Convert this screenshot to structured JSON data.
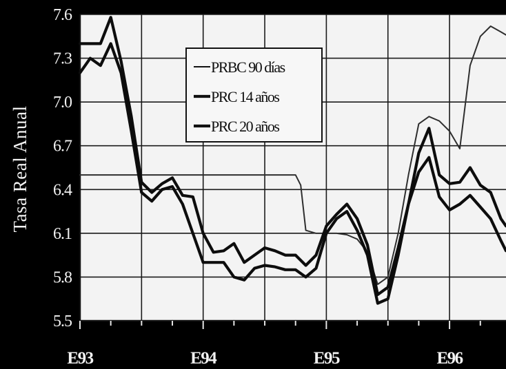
{
  "chart_data": {
    "type": "line",
    "title": "",
    "xlabel": "",
    "ylabel": "Tasa Real Anual",
    "ylim": [
      5.5,
      7.6
    ],
    "yticks": [
      "7.6",
      "7.3",
      "7.0",
      "6.7",
      "6.4",
      "6.1",
      "5.8",
      "5.5"
    ],
    "x_tick_labels": [
      "E93",
      "E94",
      "E95",
      "E96"
    ],
    "x_tick_positions": [
      0,
      12,
      24,
      36
    ],
    "xlim": [
      0,
      41.5
    ],
    "grid": true,
    "legend_position": "top-center",
    "series": [
      {
        "name": "PRBC 90 días",
        "style": "thin",
        "x": [
          0,
          1,
          2,
          3,
          4,
          5,
          6,
          7,
          8,
          9,
          10,
          11,
          12,
          13,
          14,
          15,
          16,
          17,
          18,
          19,
          20,
          21,
          21.5,
          22,
          23,
          24,
          25,
          26,
          27,
          28,
          29,
          30,
          31,
          32,
          33,
          34,
          35,
          36,
          37,
          38,
          39,
          40,
          41,
          41.5
        ],
        "values": [
          6.5,
          6.5,
          6.5,
          6.5,
          6.5,
          6.5,
          6.5,
          6.5,
          6.5,
          6.5,
          6.5,
          6.5,
          6.5,
          6.5,
          6.5,
          6.5,
          6.5,
          6.5,
          6.5,
          6.5,
          6.5,
          6.5,
          6.43,
          6.12,
          6.1,
          6.1,
          6.1,
          6.09,
          6.06,
          5.97,
          5.75,
          5.8,
          6.1,
          6.5,
          6.85,
          6.9,
          6.87,
          6.8,
          6.68,
          7.25,
          7.45,
          7.52,
          7.48,
          7.46
        ]
      },
      {
        "name": "PRC 14 años",
        "style": "thick",
        "x": [
          0,
          1,
          2,
          3,
          4,
          5,
          6,
          7,
          8,
          9,
          10,
          11,
          12,
          13,
          14,
          15,
          16,
          17,
          18,
          19,
          20,
          21,
          22,
          23,
          24,
          25,
          26,
          27,
          28,
          29,
          30,
          31,
          32,
          33,
          34,
          35,
          36,
          37,
          38,
          39,
          40,
          41,
          41.5
        ],
        "values": [
          7.4,
          7.4,
          7.4,
          7.58,
          7.28,
          6.9,
          6.45,
          6.38,
          6.44,
          6.48,
          6.36,
          6.35,
          6.1,
          5.97,
          5.98,
          6.03,
          5.9,
          5.95,
          6.0,
          5.98,
          5.95,
          5.95,
          5.88,
          5.95,
          6.15,
          6.23,
          6.3,
          6.2,
          6.02,
          5.68,
          5.73,
          6.0,
          6.3,
          6.65,
          6.82,
          6.5,
          6.44,
          6.45,
          6.55,
          6.43,
          6.38,
          6.2,
          6.15
        ]
      },
      {
        "name": "PRC 20 años",
        "style": "thick",
        "x": [
          0,
          1,
          2,
          3,
          4,
          5,
          6,
          7,
          8,
          9,
          10,
          11,
          12,
          13,
          14,
          15,
          16,
          17,
          18,
          19,
          20,
          21,
          22,
          23,
          24,
          25,
          26,
          27,
          28,
          29,
          30,
          31,
          32,
          33,
          34,
          35,
          36,
          37,
          38,
          39,
          40,
          41,
          41.5
        ],
        "values": [
          7.2,
          7.3,
          7.25,
          7.4,
          7.2,
          6.8,
          6.38,
          6.32,
          6.4,
          6.42,
          6.3,
          6.1,
          5.9,
          5.9,
          5.9,
          5.8,
          5.78,
          5.86,
          5.88,
          5.87,
          5.85,
          5.85,
          5.8,
          5.86,
          6.1,
          6.2,
          6.25,
          6.12,
          5.95,
          5.62,
          5.65,
          5.95,
          6.3,
          6.52,
          6.62,
          6.35,
          6.26,
          6.3,
          6.36,
          6.28,
          6.2,
          6.05,
          5.98
        ]
      }
    ]
  }
}
